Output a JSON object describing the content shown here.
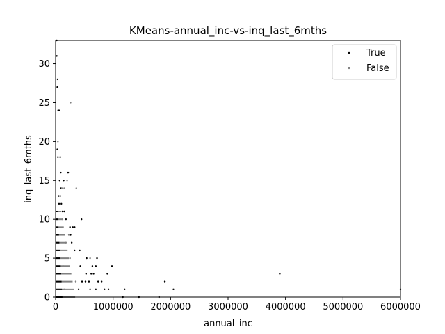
{
  "chart_data": {
    "type": "scatter",
    "title": "KMeans-annual_inc-vs-inq_last_6mths",
    "xlabel": "annual_inc",
    "ylabel": "inq_last_6mths",
    "xlim": [
      0,
      6000000
    ],
    "ylim": [
      0,
      33
    ],
    "xticks": [
      0,
      1000000,
      2000000,
      3000000,
      4000000,
      5000000,
      6000000
    ],
    "xtick_labels": [
      "0",
      "1000000",
      "2000000",
      "3000000",
      "4000000",
      "5000000",
      "6000000"
    ],
    "yticks": [
      0,
      5,
      10,
      15,
      20,
      25,
      30
    ],
    "ytick_labels": [
      "0",
      "5",
      "10",
      "15",
      "20",
      "25",
      "30"
    ],
    "grid": false,
    "legend_position": "top-right",
    "series": [
      {
        "name": "True",
        "color": "#000000",
        "points": [
          [
            20000,
            33
          ],
          [
            20000,
            31
          ],
          [
            35000,
            28
          ],
          [
            30000,
            27
          ],
          [
            45000,
            24
          ],
          [
            60000,
            24
          ],
          [
            30000,
            19
          ],
          [
            40000,
            18
          ],
          [
            80000,
            18
          ],
          [
            210000,
            16
          ],
          [
            220000,
            16
          ],
          [
            90000,
            16
          ],
          [
            70000,
            15
          ],
          [
            140000,
            15
          ],
          [
            95000,
            14
          ],
          [
            50000,
            13
          ],
          [
            80000,
            13
          ],
          [
            60000,
            12
          ],
          [
            100000,
            12
          ],
          [
            150000,
            11
          ],
          [
            120000,
            11
          ],
          [
            450000,
            10
          ],
          [
            180000,
            10
          ],
          [
            250000,
            9
          ],
          [
            300000,
            9
          ],
          [
            330000,
            9
          ],
          [
            260000,
            8
          ],
          [
            280000,
            7
          ],
          [
            420000,
            6
          ],
          [
            330000,
            6
          ],
          [
            540000,
            5
          ],
          [
            720000,
            5
          ],
          [
            430000,
            4
          ],
          [
            640000,
            4
          ],
          [
            700000,
            4
          ],
          [
            980000,
            4
          ],
          [
            530000,
            3
          ],
          [
            620000,
            3
          ],
          [
            660000,
            3
          ],
          [
            900000,
            3
          ],
          [
            3900000,
            3
          ],
          [
            460000,
            2
          ],
          [
            520000,
            2
          ],
          [
            580000,
            2
          ],
          [
            740000,
            2
          ],
          [
            800000,
            2
          ],
          [
            1900000,
            2
          ],
          [
            400000,
            1
          ],
          [
            600000,
            1
          ],
          [
            700000,
            1
          ],
          [
            850000,
            1
          ],
          [
            920000,
            1
          ],
          [
            1200000,
            1
          ],
          [
            2050000,
            1
          ],
          [
            6000000,
            1
          ],
          [
            1170000,
            0
          ],
          [
            1450000,
            0
          ],
          [
            1800000,
            0
          ]
        ]
      },
      {
        "name": "False",
        "color": "#808080",
        "points": [
          [
            260000,
            25
          ],
          [
            40000,
            20
          ],
          [
            200000,
            15
          ],
          [
            150000,
            14
          ],
          [
            110000,
            14
          ],
          [
            360000,
            14
          ],
          [
            120000,
            10
          ],
          [
            230000,
            8
          ],
          [
            180000,
            7
          ],
          [
            600000,
            5
          ],
          [
            250000,
            5
          ],
          [
            130000,
            4
          ],
          [
            200000,
            3
          ],
          [
            350000,
            2
          ],
          [
            150000,
            1
          ]
        ]
      }
    ]
  }
}
